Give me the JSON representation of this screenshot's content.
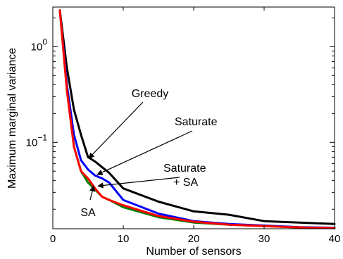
{
  "chart_data": {
    "type": "line",
    "xlabel": "Number of sensors",
    "ylabel": "Maximum marginal variance",
    "xlim": [
      0,
      40
    ],
    "ylim": [
      0.0125,
      2.6
    ],
    "yscale": "log",
    "xticks": [
      {
        "value": 0,
        "label": "0"
      },
      {
        "value": 10,
        "label": "10"
      },
      {
        "value": 20,
        "label": "20"
      },
      {
        "value": 30,
        "label": "30"
      },
      {
        "value": 40,
        "label": "40"
      }
    ],
    "yticks": [
      {
        "value": 1,
        "base": "10",
        "exp": "0"
      },
      {
        "value": 0.1,
        "base": "10",
        "exp": "−1"
      }
    ],
    "grid": false,
    "series": [
      {
        "label_text": "Greedy",
        "color": "#000000",
        "points": [
          [
            1,
            2.4
          ],
          [
            2,
            0.6
          ],
          [
            3,
            0.22
          ],
          [
            4,
            0.12
          ],
          [
            5,
            0.07
          ],
          [
            6,
            0.063
          ],
          [
            7,
            0.055
          ],
          [
            8,
            0.048
          ],
          [
            10,
            0.033
          ],
          [
            15,
            0.024
          ],
          [
            20,
            0.019
          ],
          [
            25,
            0.0175
          ],
          [
            30,
            0.015
          ],
          [
            35,
            0.0145
          ],
          [
            40,
            0.014
          ]
        ]
      },
      {
        "label_text": "Saturate",
        "color": "#0000ff",
        "points": [
          [
            1,
            2.4
          ],
          [
            2,
            0.4
          ],
          [
            3,
            0.12
          ],
          [
            4,
            0.065
          ],
          [
            5,
            0.052
          ],
          [
            6,
            0.045
          ],
          [
            7,
            0.042
          ],
          [
            8,
            0.038
          ],
          [
            10,
            0.025
          ],
          [
            15,
            0.018
          ],
          [
            20,
            0.015
          ],
          [
            25,
            0.014
          ],
          [
            30,
            0.0135
          ],
          [
            35,
            0.013
          ],
          [
            40,
            0.0128
          ]
        ]
      },
      {
        "label_text": "SA",
        "color": "#008000",
        "points": [
          [
            1,
            2.4
          ],
          [
            2,
            0.35
          ],
          [
            3,
            0.09
          ],
          [
            4,
            0.05
          ],
          [
            5,
            0.038
          ],
          [
            6,
            0.032
          ],
          [
            7,
            0.027
          ],
          [
            8,
            0.025
          ],
          [
            10,
            0.021
          ],
          [
            15,
            0.0165
          ],
          [
            20,
            0.0145
          ],
          [
            25,
            0.0138
          ],
          [
            30,
            0.0133
          ],
          [
            35,
            0.0129
          ],
          [
            40,
            0.0127
          ]
        ]
      },
      {
        "label_text": "Saturate + SA",
        "color": "#ff0000",
        "points": [
          [
            1,
            2.4
          ],
          [
            2,
            0.35
          ],
          [
            3,
            0.09
          ],
          [
            4,
            0.05
          ],
          [
            5,
            0.042
          ],
          [
            6,
            0.033
          ],
          [
            7,
            0.027
          ],
          [
            8,
            0.025
          ],
          [
            10,
            0.022
          ],
          [
            15,
            0.017
          ],
          [
            20,
            0.0148
          ],
          [
            25,
            0.0138
          ],
          [
            30,
            0.0133
          ],
          [
            35,
            0.0129
          ],
          [
            40,
            0.0127
          ]
        ]
      }
    ],
    "annotations": [
      {
        "lines": [
          "Greedy"
        ],
        "target": [
          5.1,
          0.068
        ],
        "anchor": "middle"
      },
      {
        "lines": [
          "Saturate"
        ],
        "target": [
          6.3,
          0.046
        ],
        "anchor": "start"
      },
      {
        "lines": [
          "Saturate",
          "+ SA"
        ],
        "target": [
          6.4,
          0.035
        ],
        "anchor": "start"
      },
      {
        "lines": [
          "SA"
        ],
        "target": [
          5.8,
          0.035
        ],
        "anchor": "middle"
      }
    ]
  }
}
